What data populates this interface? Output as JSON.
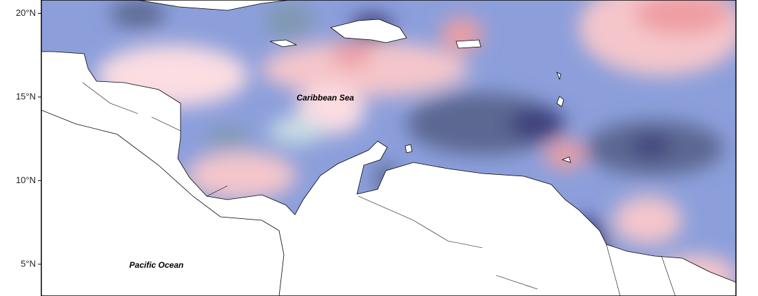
{
  "map": {
    "lat_range": [
      3.1,
      20.8
    ],
    "lat_ticks": [
      {
        "value": 20,
        "label": "20°N"
      },
      {
        "value": 15,
        "label": "15°N"
      },
      {
        "value": 10,
        "label": "10°N"
      },
      {
        "value": 5,
        "label": "5°N"
      }
    ],
    "labels": [
      "Caribbean Sea",
      "Pacific Ocean"
    ]
  }
}
